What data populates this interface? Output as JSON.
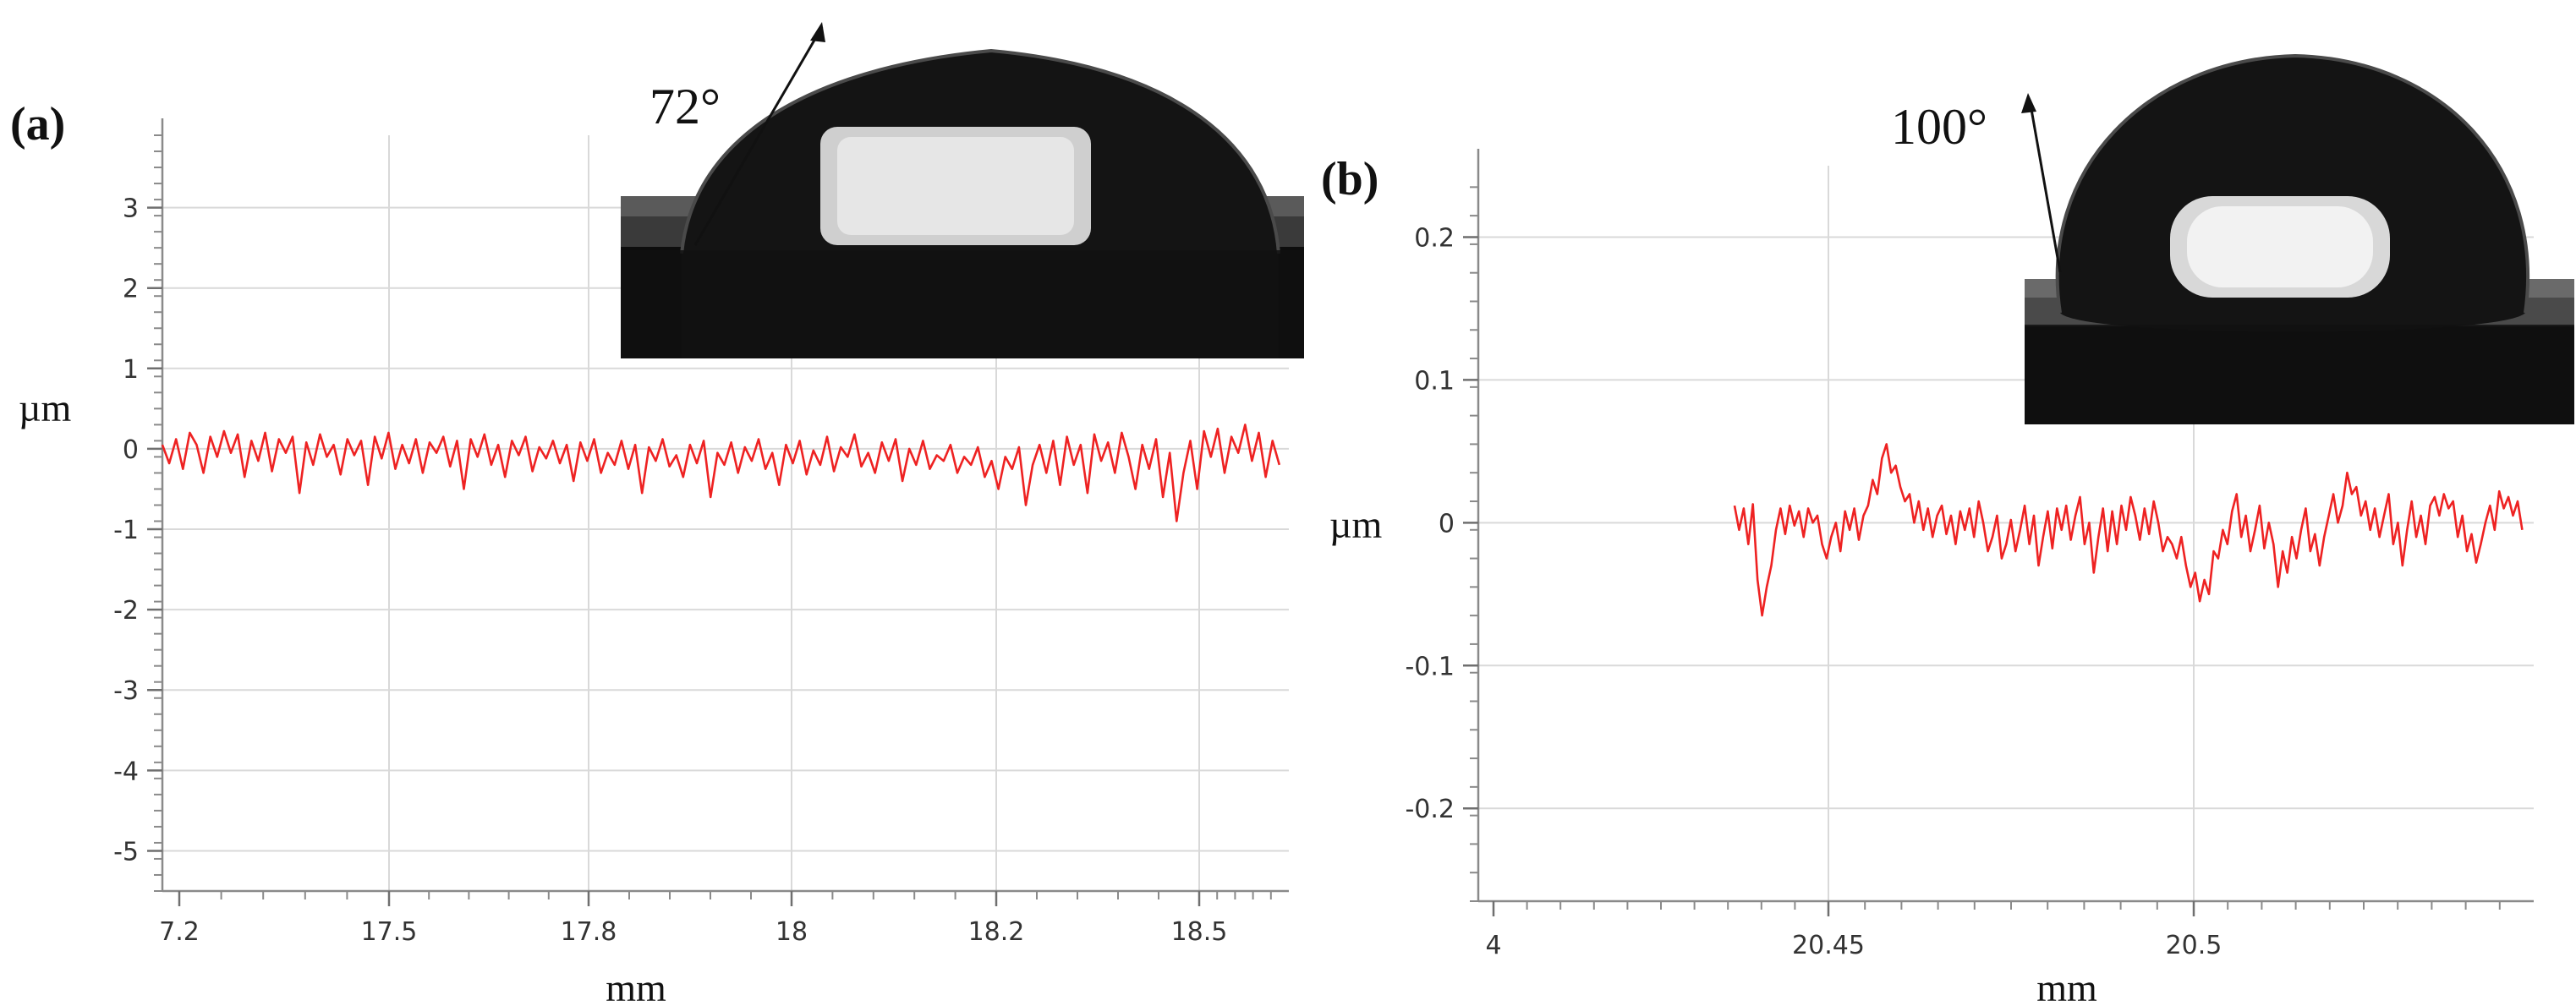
{
  "chart_data": [
    {
      "panel": "(a)",
      "type": "line",
      "xlabel": "mm",
      "ylabel": "µm",
      "x_tick_labels": [
        "7.2",
        "17.5",
        "17.8",
        "18",
        "18.2",
        "18.5"
      ],
      "xlim": [
        17.44,
        18.63
      ],
      "ylim": [
        -5.5,
        3.9
      ],
      "y_ticks": [
        3,
        2,
        1,
        0,
        -1,
        -2,
        -3,
        -4,
        -5
      ],
      "grid": true,
      "series": [
        {
          "color": "#ee2222",
          "x_range": [
            17.44,
            18.62
          ],
          "y_range": [
            -0.9,
            0.3
          ],
          "mean": 0.0,
          "values": [
            0.05,
            -0.18,
            0.12,
            -0.25,
            0.2,
            0.05,
            -0.3,
            0.15,
            -0.1,
            0.22,
            -0.05,
            0.18,
            -0.35,
            0.1,
            -0.15,
            0.2,
            -0.28,
            0.12,
            -0.05,
            0.15,
            -0.55,
            0.08,
            -0.2,
            0.18,
            -0.1,
            0.05,
            -0.32,
            0.12,
            -0.08,
            0.1,
            -0.45,
            0.15,
            -0.12,
            0.2,
            -0.25,
            0.05,
            -0.18,
            0.12,
            -0.3,
            0.08,
            -0.05,
            0.15,
            -0.22,
            0.1,
            -0.5,
            0.12,
            -0.1,
            0.18,
            -0.2,
            0.05,
            -0.35,
            0.1,
            -0.08,
            0.15,
            -0.28,
            0.02,
            -0.12,
            0.1,
            -0.18,
            0.05,
            -0.4,
            0.08,
            -0.15,
            0.12,
            -0.3,
            -0.05,
            -0.2,
            0.1,
            -0.25,
            0.05,
            -0.55,
            0.02,
            -0.15,
            0.12,
            -0.22,
            -0.08,
            -0.35,
            0.05,
            -0.18,
            0.1,
            -0.6,
            -0.05,
            -0.2,
            0.08,
            -0.3,
            0.02,
            -0.15,
            0.12,
            -0.25,
            -0.05,
            -0.45,
            0.05,
            -0.18,
            0.1,
            -0.32,
            -0.02,
            -0.2,
            0.15,
            -0.28,
            0.02,
            -0.1,
            0.18,
            -0.22,
            -0.05,
            -0.3,
            0.08,
            -0.15,
            0.12,
            -0.4,
            0.0,
            -0.2,
            0.1,
            -0.25,
            -0.08,
            -0.15,
            0.05,
            -0.3,
            -0.1,
            -0.2,
            0.02,
            -0.35,
            -0.15,
            -0.5,
            -0.1,
            -0.25,
            0.02,
            -0.7,
            -0.2,
            0.05,
            -0.3,
            0.1,
            -0.45,
            0.15,
            -0.2,
            0.05,
            -0.55,
            0.18,
            -0.15,
            0.08,
            -0.3,
            0.2,
            -0.1,
            -0.5,
            0.05,
            -0.25,
            0.12,
            -0.6,
            -0.05,
            -0.9,
            -0.3,
            0.1,
            -0.5,
            0.22,
            -0.1,
            0.25,
            -0.3,
            0.15,
            -0.05,
            0.3,
            -0.15,
            0.2,
            -0.35,
            0.1,
            -0.2
          ]
        }
      ],
      "inset": {
        "angle_label": "72°"
      }
    },
    {
      "panel": "(b)",
      "type": "line",
      "xlabel": "mm",
      "ylabel": "µm",
      "x_tick_labels": [
        "4",
        "20.45",
        "20.5"
      ],
      "xlim": [
        20.396,
        20.534
      ],
      "ylim": [
        -0.265,
        0.25
      ],
      "y_ticks": [
        0.2,
        0.1,
        0,
        -0.1,
        -0.2
      ],
      "grid": true,
      "series": [
        {
          "color": "#ee2222",
          "x_range": [
            20.4295,
            20.5325
          ],
          "y_range": [
            -0.065,
            0.055
          ],
          "mean": 0.0,
          "values": [
            0.012,
            -0.005,
            0.01,
            -0.015,
            0.013,
            -0.04,
            -0.065,
            -0.045,
            -0.03,
            -0.005,
            0.01,
            -0.008,
            0.012,
            -0.002,
            0.008,
            -0.01,
            0.01,
            0.0,
            0.005,
            -0.015,
            -0.025,
            -0.01,
            0.0,
            -0.02,
            0.008,
            -0.005,
            0.01,
            -0.012,
            0.005,
            0.012,
            0.03,
            0.02,
            0.045,
            0.055,
            0.035,
            0.04,
            0.025,
            0.015,
            0.02,
            0.0,
            0.015,
            -0.005,
            0.01,
            -0.01,
            0.005,
            0.012,
            -0.008,
            0.005,
            -0.015,
            0.008,
            -0.005,
            0.01,
            -0.01,
            0.015,
            0.0,
            -0.02,
            -0.01,
            0.005,
            -0.025,
            -0.015,
            0.002,
            -0.02,
            -0.005,
            0.012,
            -0.015,
            0.005,
            -0.03,
            -0.01,
            0.008,
            -0.018,
            0.01,
            -0.005,
            0.012,
            -0.012,
            0.005,
            0.018,
            -0.015,
            0.0,
            -0.035,
            -0.01,
            0.01,
            -0.02,
            0.008,
            -0.015,
            0.012,
            -0.005,
            0.018,
            0.005,
            -0.012,
            0.01,
            -0.008,
            0.015,
            0.0,
            -0.02,
            -0.01,
            -0.015,
            -0.025,
            -0.01,
            -0.03,
            -0.045,
            -0.035,
            -0.055,
            -0.04,
            -0.05,
            -0.02,
            -0.025,
            -0.005,
            -0.015,
            0.008,
            0.02,
            -0.01,
            0.005,
            -0.02,
            -0.005,
            0.012,
            -0.018,
            0.0,
            -0.015,
            -0.045,
            -0.02,
            -0.035,
            -0.01,
            -0.025,
            -0.005,
            0.01,
            -0.02,
            -0.008,
            -0.03,
            -0.01,
            0.005,
            0.02,
            0.0,
            0.012,
            0.035,
            0.02,
            0.025,
            0.005,
            0.015,
            -0.005,
            0.01,
            -0.01,
            0.005,
            0.02,
            -0.015,
            0.0,
            -0.03,
            -0.005,
            0.015,
            -0.01,
            0.005,
            -0.015,
            0.012,
            0.018,
            0.005,
            0.02,
            0.01,
            0.015,
            -0.01,
            0.005,
            -0.02,
            -0.008,
            -0.028,
            -0.015,
            0.0,
            0.012,
            -0.005,
            0.022,
            0.01,
            0.018,
            0.005,
            0.015,
            -0.005
          ]
        }
      ],
      "inset": {
        "angle_label": "100°"
      }
    }
  ]
}
